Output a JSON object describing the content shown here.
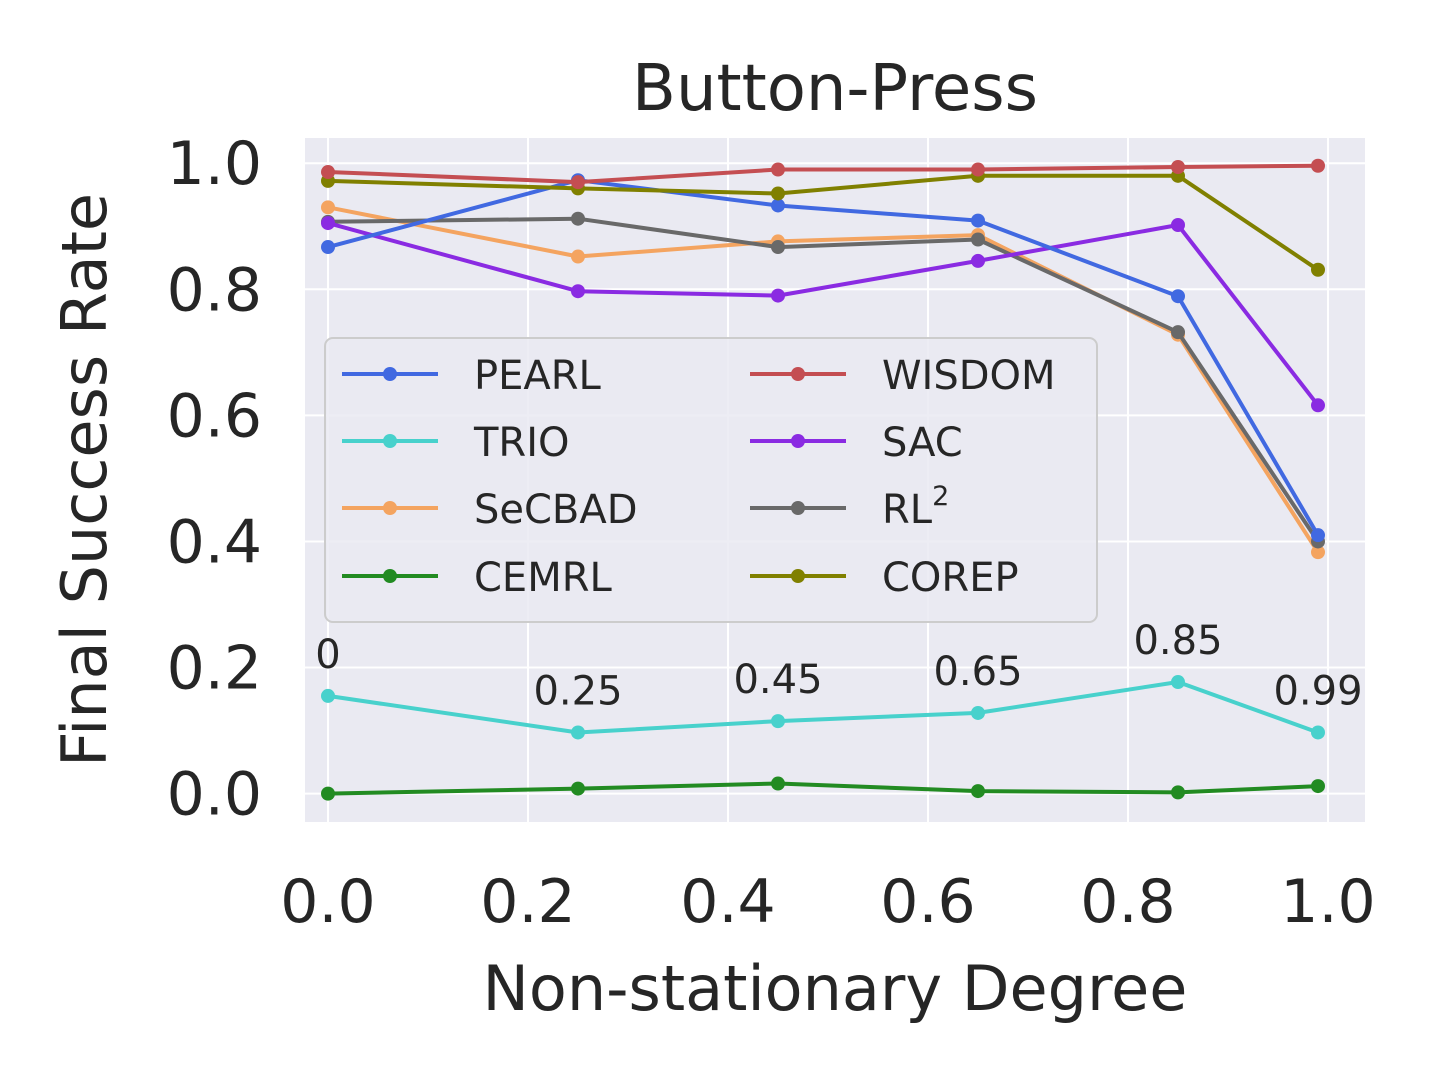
{
  "chart_data": {
    "type": "line",
    "title": "Button-Press",
    "xlabel": "Non-stationary Degree",
    "ylabel": "Final Success Rate",
    "xlim": [
      -0.023,
      1.037
    ],
    "ylim": [
      -0.045,
      1.04
    ],
    "xticks": [
      0.0,
      0.2,
      0.4,
      0.6,
      0.8,
      1.0
    ],
    "xtick_labels": [
      "0.0",
      "0.2",
      "0.4",
      "0.6",
      "0.8",
      "1.0"
    ],
    "yticks": [
      0.0,
      0.2,
      0.4,
      0.6,
      0.8,
      1.0
    ],
    "ytick_labels": [
      "0.0",
      "0.2",
      "0.4",
      "0.6",
      "0.8",
      "1.0"
    ],
    "grid": true,
    "legend_position": "center-left",
    "legend_columns": 2,
    "x": [
      0,
      0.25,
      0.45,
      0.65,
      0.85,
      0.99
    ],
    "series": [
      {
        "name": "PEARL",
        "color": "#4169e1",
        "values": [
          0.867,
          0.973,
          0.933,
          0.909,
          0.789,
          0.41
        ]
      },
      {
        "name": "TRIO",
        "color": "#48d1cc",
        "values": [
          0.155,
          0.097,
          0.115,
          0.128,
          0.177,
          0.097
        ]
      },
      {
        "name": "SeCBAD",
        "color": "#f4a460",
        "values": [
          0.93,
          0.852,
          0.876,
          0.886,
          0.728,
          0.383
        ]
      },
      {
        "name": "CEMRL",
        "color": "#228b22",
        "values": [
          0.0,
          0.008,
          0.016,
          0.004,
          0.002,
          0.012
        ]
      },
      {
        "name": "WISDOM",
        "color": "#c44e52",
        "values": [
          0.986,
          0.97,
          0.99,
          0.99,
          0.994,
          0.996
        ]
      },
      {
        "name": "SAC",
        "color": "#8a2be2",
        "values": [
          0.905,
          0.797,
          0.79,
          0.845,
          0.902,
          0.616
        ]
      },
      {
        "name": "RL2",
        "color": "#696969",
        "values": [
          0.907,
          0.912,
          0.867,
          0.879,
          0.732,
          0.4
        ]
      },
      {
        "name": "COREP",
        "color": "#808000",
        "values": [
          0.972,
          0.96,
          0.952,
          0.98,
          0.98,
          0.831
        ]
      }
    ],
    "legend_entries": [
      {
        "label": "PEARL",
        "sup": ""
      },
      {
        "label": "TRIO",
        "sup": ""
      },
      {
        "label": "SeCBAD",
        "sup": ""
      },
      {
        "label": "CEMRL",
        "sup": ""
      },
      {
        "label": "WISDOM",
        "sup": ""
      },
      {
        "label": "SAC",
        "sup": ""
      },
      {
        "label": "RL",
        "sup": "2"
      },
      {
        "label": "COREP",
        "sup": ""
      }
    ],
    "annotations": [
      "0",
      "0.25",
      "0.45",
      "0.65",
      "0.85",
      "0.99"
    ]
  }
}
